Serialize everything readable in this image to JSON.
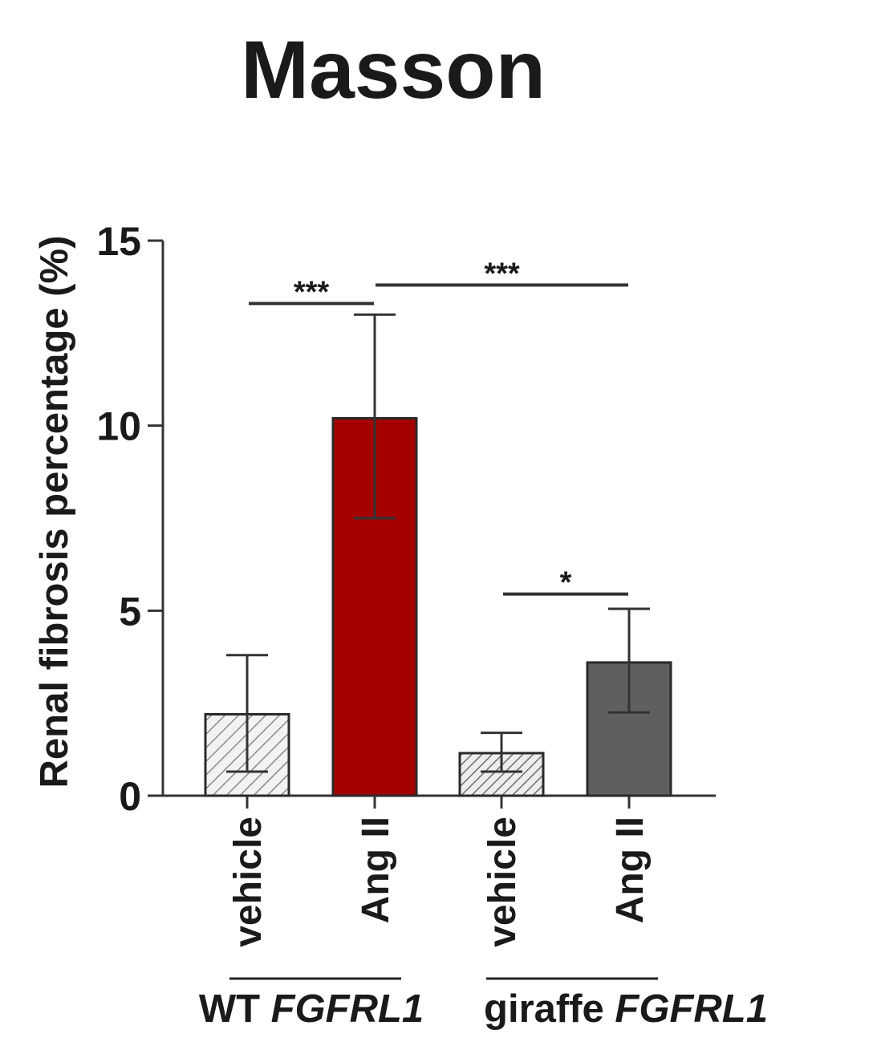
{
  "chart_data": {
    "type": "bar",
    "title": "Masson",
    "ylabel": "Renal fibrosis percentage (%)",
    "ylim": [
      0,
      15
    ],
    "yticks": [
      "0",
      "5",
      "10",
      "15"
    ],
    "grid": false,
    "categories": [
      "vehicle",
      "Ang II",
      "vehicle",
      "Ang II"
    ],
    "values": [
      2.2,
      10.2,
      1.15,
      3.6
    ],
    "errors_upper": [
      3.8,
      13.0,
      1.7,
      5.05
    ],
    "errors_lower": [
      0.65,
      7.5,
      0.65,
      2.25
    ],
    "bar_styles": [
      {
        "fill": "hatched",
        "color": "#d0d0d0"
      },
      {
        "fill": "solid",
        "color": "#a50000"
      },
      {
        "fill": "hatched",
        "color": "#b5b5b5"
      },
      {
        "fill": "solid",
        "color": "#5f5f5f"
      }
    ],
    "groups": [
      {
        "label_plain": "WT",
        "label_italic": "FGFRL1",
        "bars": [
          0,
          1
        ]
      },
      {
        "label_plain": "giraffe",
        "label_italic": "FGFRL1",
        "bars": [
          2,
          3
        ]
      }
    ],
    "significance": [
      {
        "from": 0,
        "to": 1,
        "label": "***",
        "y": 13.3
      },
      {
        "from": 1,
        "to": 3,
        "label": "***",
        "y": 13.8
      },
      {
        "from": 2,
        "to": 3,
        "label": "*",
        "y": 5.45
      }
    ]
  }
}
